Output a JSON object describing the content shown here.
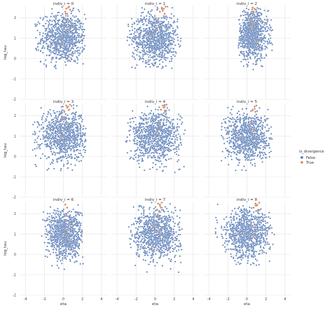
{
  "chart_data": {
    "type": "scatter",
    "facet_titles": [
      "indiv_i = 0",
      "indiv_i = 1",
      "indiv_i = 2",
      "indiv_i = 3",
      "indiv_i = 4",
      "indiv_i = 5",
      "indiv_i = 6",
      "indiv_i = 7",
      "indiv_i = 8"
    ],
    "xlabel": "eta",
    "ylabel": "log_tau",
    "xlim": [
      -4.6,
      4.6
    ],
    "ylim": [
      -2,
      2.6
    ],
    "xticks": [
      -4,
      -2,
      0,
      2,
      4
    ],
    "yticks": [
      -2,
      -1,
      0,
      1,
      2
    ],
    "grid": true,
    "legend": {
      "title": "is_divergence",
      "placement": "right",
      "entries": [
        {
          "label": "False",
          "color": "#4c72b0"
        },
        {
          "label": "True",
          "color": "#dd8452"
        }
      ]
    },
    "panels": [
      {
        "title": "indiv_i = 0",
        "false_points": {
          "center": [
            0.0,
            1.0
          ],
          "spread": [
            1.15,
            0.6
          ],
          "x_range": [
            -3.1,
            2.4
          ],
          "y_range": [
            -0.5,
            2.55
          ]
        },
        "divergent_points": [
          [
            0.3,
            2.45
          ],
          [
            0.5,
            2.5
          ],
          [
            0.7,
            2.4
          ],
          [
            0.2,
            2.3
          ],
          [
            0.6,
            2.55
          ],
          [
            0.4,
            2.2
          ],
          [
            0.1,
            1.7
          ],
          [
            0.6,
            1.4
          ],
          [
            -0.2,
            0.8
          ],
          [
            0.8,
            0.2
          ]
        ]
      },
      {
        "title": "indiv_i = 1",
        "false_points": {
          "center": [
            0.0,
            1.0
          ],
          "spread": [
            1.2,
            0.6
          ],
          "x_range": [
            -3.1,
            2.7
          ],
          "y_range": [
            -0.5,
            2.55
          ]
        },
        "divergent_points": [
          [
            0.7,
            2.5
          ],
          [
            0.9,
            2.45
          ],
          [
            1.1,
            2.55
          ],
          [
            0.5,
            2.3
          ],
          [
            1.0,
            2.2
          ],
          [
            0.8,
            2.35
          ],
          [
            0.3,
            1.9
          ],
          [
            0.2,
            1.5
          ],
          [
            -0.5,
            1.1
          ]
        ]
      },
      {
        "title": "indiv_i = 2",
        "false_points": {
          "center": [
            0.6,
            1.2
          ],
          "spread": [
            0.8,
            0.6
          ],
          "x_range": [
            -0.9,
            2.8
          ],
          "y_range": [
            -0.7,
            2.5
          ]
        },
        "divergent_points": [
          [
            0.6,
            2.5
          ],
          [
            0.8,
            2.45
          ],
          [
            0.5,
            2.3
          ],
          [
            0.9,
            2.4
          ],
          [
            0.3,
            1.9
          ],
          [
            0.7,
            1.7
          ],
          [
            0.5,
            1.5
          ],
          [
            1.0,
            0.8
          ]
        ]
      },
      {
        "title": "indiv_i = 3",
        "false_points": {
          "center": [
            0.0,
            1.0
          ],
          "spread": [
            1.2,
            0.6
          ],
          "x_range": [
            -3.3,
            2.4
          ],
          "y_range": [
            -0.8,
            2.55
          ]
        },
        "divergent_points": [
          [
            0.3,
            2.5
          ],
          [
            0.5,
            2.45
          ],
          [
            0.7,
            2.55
          ],
          [
            0.1,
            2.2
          ],
          [
            0.6,
            2.3
          ],
          [
            0.4,
            2.4
          ],
          [
            -0.1,
            1.9
          ],
          [
            0.3,
            1.6
          ],
          [
            -0.3,
            0.9
          ]
        ]
      },
      {
        "title": "indiv_i = 4",
        "false_points": {
          "center": [
            0.0,
            1.0
          ],
          "spread": [
            1.3,
            0.6
          ],
          "x_range": [
            -3.2,
            3.2
          ],
          "y_range": [
            -0.8,
            2.55
          ]
        },
        "divergent_points": [
          [
            0.8,
            2.5
          ],
          [
            1.0,
            2.45
          ],
          [
            1.2,
            2.55
          ],
          [
            0.6,
            2.3
          ],
          [
            1.1,
            2.2
          ],
          [
            0.9,
            2.4
          ],
          [
            0.5,
            1.6
          ],
          [
            0.2,
            1.2
          ]
        ]
      },
      {
        "title": "indiv_i = 5",
        "false_points": {
          "center": [
            0.0,
            1.0
          ],
          "spread": [
            1.1,
            0.6
          ],
          "x_range": [
            -2.7,
            2.7
          ],
          "y_range": [
            -0.7,
            2.5
          ]
        },
        "divergent_points": [
          [
            0.8,
            2.45
          ],
          [
            1.0,
            2.5
          ],
          [
            0.6,
            2.3
          ],
          [
            0.9,
            2.2
          ],
          [
            0.4,
            1.7
          ],
          [
            0.7,
            1.3
          ]
        ]
      },
      {
        "title": "indiv_i = 6",
        "false_points": {
          "center": [
            0.2,
            1.0
          ],
          "spread": [
            0.95,
            0.6
          ],
          "x_range": [
            -2.3,
            2.1
          ],
          "y_range": [
            -0.8,
            2.5
          ]
        },
        "divergent_points": [
          [
            0.2,
            2.45
          ],
          [
            0.4,
            2.3
          ],
          [
            0.3,
            1.9
          ],
          [
            0.6,
            1.5
          ],
          [
            0.5,
            1.2
          ],
          [
            0.1,
            1.0
          ],
          [
            0.7,
            0.7
          ]
        ]
      },
      {
        "title": "indiv_i = 7",
        "false_points": {
          "center": [
            0.2,
            1.0
          ],
          "spread": [
            1.2,
            0.6
          ],
          "x_range": [
            -2.9,
            2.9
          ],
          "y_range": [
            -0.9,
            2.55
          ]
        },
        "divergent_points": [
          [
            0.3,
            2.5
          ],
          [
            0.5,
            2.45
          ],
          [
            0.7,
            2.55
          ],
          [
            0.2,
            2.2
          ],
          [
            0.6,
            2.3
          ],
          [
            0.4,
            1.8
          ],
          [
            -0.1,
            1.4
          ],
          [
            0.5,
            1.1
          ],
          [
            -0.3,
            0.4
          ]
        ]
      },
      {
        "title": "indiv_i = 8",
        "false_points": {
          "center": [
            0.0,
            1.0
          ],
          "spread": [
            1.2,
            0.6
          ],
          "x_range": [
            -3.4,
            2.9
          ],
          "y_range": [
            -0.7,
            2.55
          ]
        },
        "divergent_points": [
          [
            0.9,
            2.5
          ],
          [
            1.1,
            2.45
          ],
          [
            1.3,
            2.55
          ],
          [
            0.7,
            2.3
          ],
          [
            1.2,
            2.2
          ],
          [
            1.0,
            2.4
          ],
          [
            0.6,
            1.4
          ],
          [
            0.3,
            1.0
          ],
          [
            0.9,
            0.9
          ]
        ]
      }
    ]
  }
}
